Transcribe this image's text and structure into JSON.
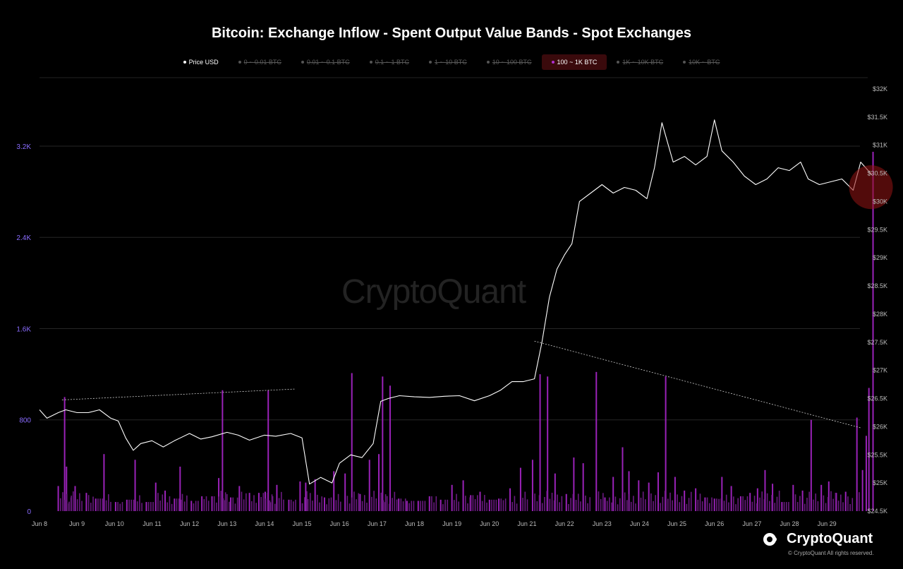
{
  "chart_data": {
    "type": "bar",
    "title": "Bitcoin: Exchange Inflow - Spent Output Value Bands - Spot Exchanges",
    "legend": [
      {
        "label": "Price USD",
        "color": "#ffffff",
        "enabled": true,
        "active": false
      },
      {
        "label": "0 ~ 0.01 BTC",
        "color": "#555555",
        "enabled": false,
        "active": false
      },
      {
        "label": "0.01 ~ 0.1 BTC",
        "color": "#555555",
        "enabled": false,
        "active": false
      },
      {
        "label": "0.1 ~ 1 BTC",
        "color": "#555555",
        "enabled": false,
        "active": false
      },
      {
        "label": "1 ~ 10 BTC",
        "color": "#555555",
        "enabled": false,
        "active": false
      },
      {
        "label": "10 ~ 100 BTC",
        "color": "#555555",
        "enabled": false,
        "active": false
      },
      {
        "label": "100 ~ 1K BTC",
        "color": "#b02fd0",
        "enabled": true,
        "active": true
      },
      {
        "label": "1K ~ 10K BTC",
        "color": "#555555",
        "enabled": false,
        "active": false
      },
      {
        "label": "10K ~ BTC",
        "color": "#555555",
        "enabled": false,
        "active": false
      }
    ],
    "x_ticks": [
      "Jun 8",
      "Jun 9",
      "Jun 10",
      "Jun 11",
      "Jun 12",
      "Jun 13",
      "Jun 14",
      "Jun 15",
      "Jun 16",
      "Jun 17",
      "Jun 18",
      "Jun 19",
      "Jun 20",
      "Jun 21",
      "Jun 22",
      "Jun 23",
      "Jun 24",
      "Jun 25",
      "Jun 26",
      "Jun 27",
      "Jun 28",
      "Jun 29"
    ],
    "y_left_ticks": [
      "0",
      "800",
      "1.6K",
      "2.4K",
      "3.2K"
    ],
    "y_left_range": [
      0,
      3800
    ],
    "y_right_ticks": [
      "$24.5K",
      "$25K",
      "$25.5K",
      "$26K",
      "$26.5K",
      "$27K",
      "$27.5K",
      "$28K",
      "$28.5K",
      "$29K",
      "$29.5K",
      "$30K",
      "$30.5K",
      "$31K",
      "$31.5K",
      "$32K"
    ],
    "y_right_range": [
      24500,
      32200
    ],
    "x_range_days": [
      0,
      22.4
    ],
    "series": [
      {
        "name": "Price USD",
        "kind": "line",
        "color": "#ffffff",
        "points": [
          [
            0.0,
            26300
          ],
          [
            0.2,
            26150
          ],
          [
            0.5,
            26250
          ],
          [
            0.7,
            26300
          ],
          [
            1.0,
            26250
          ],
          [
            1.3,
            26250
          ],
          [
            1.6,
            26300
          ],
          [
            1.9,
            26150
          ],
          [
            2.1,
            26100
          ],
          [
            2.3,
            25800
          ],
          [
            2.5,
            25580
          ],
          [
            2.7,
            25700
          ],
          [
            3.0,
            25750
          ],
          [
            3.3,
            25640
          ],
          [
            3.6,
            25750
          ],
          [
            4.0,
            25880
          ],
          [
            4.3,
            25780
          ],
          [
            4.6,
            25820
          ],
          [
            5.0,
            25900
          ],
          [
            5.3,
            25850
          ],
          [
            5.6,
            25760
          ],
          [
            6.0,
            25850
          ],
          [
            6.3,
            25830
          ],
          [
            6.7,
            25880
          ],
          [
            7.0,
            25800
          ],
          [
            7.2,
            24980
          ],
          [
            7.5,
            25100
          ],
          [
            7.8,
            25000
          ],
          [
            8.0,
            25350
          ],
          [
            8.3,
            25500
          ],
          [
            8.6,
            25450
          ],
          [
            8.9,
            25700
          ],
          [
            9.1,
            26450
          ],
          [
            9.3,
            26500
          ],
          [
            9.6,
            26550
          ],
          [
            10.0,
            26530
          ],
          [
            10.4,
            26520
          ],
          [
            10.8,
            26540
          ],
          [
            11.2,
            26550
          ],
          [
            11.6,
            26460
          ],
          [
            12.0,
            26550
          ],
          [
            12.3,
            26650
          ],
          [
            12.6,
            26800
          ],
          [
            12.9,
            26800
          ],
          [
            13.2,
            26850
          ],
          [
            13.4,
            27500
          ],
          [
            13.6,
            28300
          ],
          [
            13.8,
            28800
          ],
          [
            14.0,
            29050
          ],
          [
            14.2,
            29250
          ],
          [
            14.4,
            30000
          ],
          [
            14.7,
            30150
          ],
          [
            15.0,
            30300
          ],
          [
            15.3,
            30150
          ],
          [
            15.6,
            30250
          ],
          [
            15.9,
            30200
          ],
          [
            16.2,
            30050
          ],
          [
            16.4,
            30600
          ],
          [
            16.6,
            31400
          ],
          [
            16.9,
            30700
          ],
          [
            17.2,
            30800
          ],
          [
            17.5,
            30650
          ],
          [
            17.8,
            30800
          ],
          [
            18.0,
            31450
          ],
          [
            18.2,
            30900
          ],
          [
            18.5,
            30700
          ],
          [
            18.8,
            30450
          ],
          [
            19.1,
            30300
          ],
          [
            19.4,
            30400
          ],
          [
            19.7,
            30600
          ],
          [
            20.0,
            30550
          ],
          [
            20.3,
            30700
          ],
          [
            20.5,
            30400
          ],
          [
            20.8,
            30300
          ],
          [
            21.1,
            30350
          ],
          [
            21.4,
            30400
          ],
          [
            21.7,
            30200
          ],
          [
            21.9,
            30700
          ],
          [
            22.1,
            30550
          ],
          [
            22.2,
            30480
          ]
        ]
      },
      {
        "name": "100 ~ 1K BTC",
        "kind": "bar",
        "color": "#9a22b8",
        "points": [
          [
            0.5,
            220
          ],
          [
            0.67,
            1000
          ],
          [
            0.72,
            390
          ],
          [
            0.95,
            220
          ],
          [
            1.25,
            160
          ],
          [
            1.5,
            110
          ],
          [
            1.72,
            500
          ],
          [
            2.03,
            80
          ],
          [
            2.33,
            100
          ],
          [
            2.55,
            450
          ],
          [
            2.85,
            80
          ],
          [
            3.1,
            250
          ],
          [
            3.35,
            180
          ],
          [
            3.6,
            110
          ],
          [
            3.75,
            390
          ],
          [
            4.05,
            90
          ],
          [
            4.33,
            130
          ],
          [
            4.6,
            130
          ],
          [
            4.78,
            290
          ],
          [
            4.88,
            1060
          ],
          [
            5.1,
            120
          ],
          [
            5.33,
            220
          ],
          [
            5.6,
            160
          ],
          [
            5.85,
            160
          ],
          [
            6.02,
            170
          ],
          [
            6.1,
            1060
          ],
          [
            6.33,
            230
          ],
          [
            6.65,
            100
          ],
          [
            6.95,
            260
          ],
          [
            7.1,
            250
          ],
          [
            7.35,
            280
          ],
          [
            7.6,
            120
          ],
          [
            7.85,
            350
          ],
          [
            8.15,
            330
          ],
          [
            8.33,
            1210
          ],
          [
            8.55,
            150
          ],
          [
            8.8,
            450
          ],
          [
            9.05,
            500
          ],
          [
            9.15,
            1180
          ],
          [
            9.35,
            1100
          ],
          [
            9.58,
            110
          ],
          [
            9.8,
            90
          ],
          [
            10.1,
            90
          ],
          [
            10.4,
            130
          ],
          [
            10.7,
            100
          ],
          [
            11.0,
            230
          ],
          [
            11.3,
            270
          ],
          [
            11.5,
            140
          ],
          [
            11.75,
            170
          ],
          [
            12.0,
            100
          ],
          [
            12.25,
            110
          ],
          [
            12.55,
            200
          ],
          [
            12.83,
            380
          ],
          [
            13.15,
            450
          ],
          [
            13.35,
            1200
          ],
          [
            13.55,
            1180
          ],
          [
            13.75,
            330
          ],
          [
            14.05,
            150
          ],
          [
            14.25,
            470
          ],
          [
            14.5,
            420
          ],
          [
            14.85,
            1220
          ],
          [
            15.08,
            120
          ],
          [
            15.3,
            300
          ],
          [
            15.55,
            560
          ],
          [
            15.72,
            350
          ],
          [
            15.98,
            270
          ],
          [
            16.25,
            250
          ],
          [
            16.5,
            340
          ],
          [
            16.7,
            1180
          ],
          [
            16.95,
            300
          ],
          [
            17.2,
            180
          ],
          [
            17.5,
            200
          ],
          [
            17.75,
            120
          ],
          [
            18.0,
            110
          ],
          [
            18.2,
            300
          ],
          [
            18.45,
            220
          ],
          [
            18.7,
            130
          ],
          [
            18.95,
            160
          ],
          [
            19.15,
            200
          ],
          [
            19.35,
            360
          ],
          [
            19.55,
            240
          ],
          [
            19.8,
            80
          ],
          [
            20.1,
            230
          ],
          [
            20.35,
            180
          ],
          [
            20.58,
            800
          ],
          [
            20.85,
            230
          ],
          [
            21.05,
            260
          ],
          [
            21.25,
            160
          ],
          [
            21.5,
            170
          ],
          [
            21.8,
            820
          ],
          [
            21.95,
            360
          ],
          [
            22.05,
            660
          ],
          [
            22.12,
            1080
          ],
          [
            22.23,
            3150
          ]
        ]
      }
    ],
    "annotations": {
      "trendline_1": {
        "from": [
          0.6,
          975
        ],
        "to": [
          6.8,
          1070
        ]
      },
      "trendline_2": {
        "from": [
          13.2,
          1490
        ],
        "to": [
          21.9,
          730
        ]
      },
      "highlight_circle": {
        "center": [
          22.25,
          2840
        ],
        "note": "latest bar spike"
      }
    }
  },
  "watermark": "CryptoQuant",
  "brand": {
    "name": "CryptoQuant",
    "copyright": "© CryptoQuant All rights reserved."
  }
}
